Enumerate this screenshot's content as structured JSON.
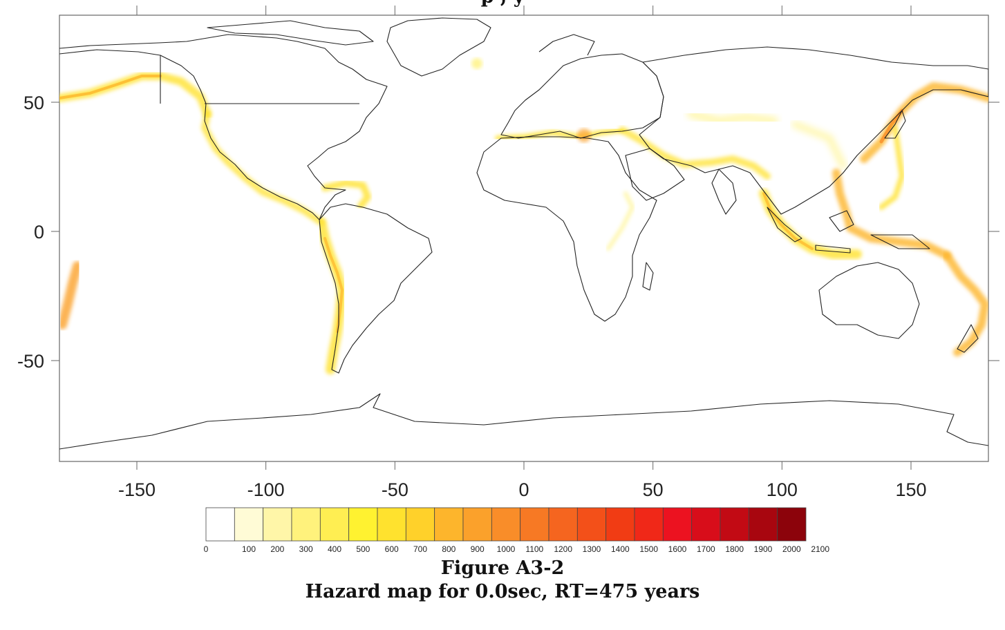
{
  "top_title_fragment": "p          ,           y",
  "map": {
    "type": "hazard-map",
    "projection": "equirectangular",
    "lon_range": [
      -180,
      180
    ],
    "lat_range": [
      -90,
      90
    ],
    "x_ticks": [
      -150,
      -100,
      -50,
      0,
      50,
      100,
      150
    ],
    "y_ticks": [
      50,
      0,
      -50
    ],
    "x_tick_labels": [
      "-150",
      "-100",
      "-50",
      "0",
      "50",
      "100",
      "150"
    ],
    "y_tick_labels": [
      "50",
      "0",
      "-50"
    ],
    "land_fill": "#ffffff",
    "coast_color": "#222222"
  },
  "legend": {
    "values": [
      "0",
      "100",
      "200",
      "300",
      "400",
      "500",
      "600",
      "700",
      "800",
      "900",
      "1000",
      "1100",
      "1200",
      "1300",
      "1400",
      "1500",
      "1600",
      "1700",
      "1800",
      "1900",
      "2000",
      "2100"
    ],
    "colors": [
      "#ffffff",
      "#fffbd6",
      "#fff6a8",
      "#fff27c",
      "#ffee52",
      "#fff230",
      "#ffe22e",
      "#ffd12a",
      "#fdb52c",
      "#fba12b",
      "#f98d29",
      "#f77924",
      "#f5651f",
      "#f35019",
      "#f13c14",
      "#f02818",
      "#ec1220",
      "#d80d1a",
      "#c20a14",
      "#a8060f",
      "#8c030b"
    ]
  },
  "caption": {
    "line1": "Figure A3-2",
    "line2": "Hazard map for 0.0sec, RT=475 years"
  }
}
